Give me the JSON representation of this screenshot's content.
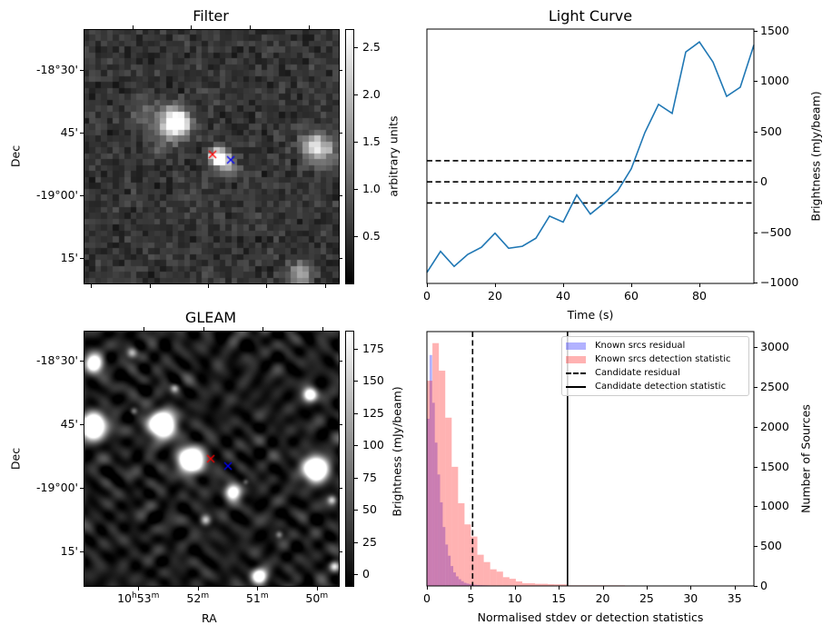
{
  "panels": {
    "filter": {
      "title": "Filter",
      "ylabel": "Dec",
      "dec_range_deg": [
        -18.337,
        -19.351
      ],
      "dec_ticks": [
        {
          "value": -18.5,
          "label": "-18°30'"
        },
        {
          "value": -18.75,
          "label": "45'"
        },
        {
          "value": -19.0,
          "label": "-19°00'"
        },
        {
          "value": -19.25,
          "label": "15'"
        }
      ],
      "colorbar": {
        "label": "arbitrary units",
        "range": [
          0,
          2.69
        ],
        "ticks": [
          {
            "value": 2.5,
            "label": "2.5"
          },
          {
            "value": 2.0,
            "label": "2.0"
          },
          {
            "value": 1.5,
            "label": "1.5"
          },
          {
            "value": 1.0,
            "label": "1.0"
          },
          {
            "value": 0.5,
            "label": "0.5"
          }
        ]
      },
      "marker_colors": {
        "candidate": "#ff0000",
        "reference": "#0000ff"
      }
    },
    "gleam": {
      "title": "GLEAM",
      "xlabel": "RA",
      "ylabel": "Dec",
      "dec_range_deg": [
        -18.382,
        -19.386
      ],
      "ra_range_min": [
        53.92,
        49.63
      ],
      "dec_ticks": [
        {
          "value": -18.5,
          "label": "-18°30'"
        },
        {
          "value": -18.75,
          "label": "45'"
        },
        {
          "value": -19.0,
          "label": "-19°00'"
        },
        {
          "value": -19.25,
          "label": "15'"
        }
      ],
      "ra_ticks": [
        {
          "value": 53,
          "h": "10",
          "hs": "h",
          "m": "53",
          "ms": "m"
        },
        {
          "value": 52,
          "m": "52",
          "ms": "m"
        },
        {
          "value": 51,
          "m": "51",
          "ms": "m"
        },
        {
          "value": 50,
          "m": "50",
          "ms": "m"
        }
      ],
      "colorbar": {
        "label": "Brightness (mJy/beam)",
        "range": [
          -9,
          189
        ],
        "ticks": [
          {
            "value": 175,
            "label": "175"
          },
          {
            "value": 150,
            "label": "150"
          },
          {
            "value": 125,
            "label": "125"
          },
          {
            "value": 100,
            "label": "100"
          },
          {
            "value": 75,
            "label": "75"
          },
          {
            "value": 50,
            "label": "50"
          },
          {
            "value": 25,
            "label": "25"
          },
          {
            "value": 0,
            "label": "0"
          }
        ]
      },
      "marker_colors": {
        "candidate": "#ff0000",
        "reference": "#0000ff"
      }
    }
  },
  "chart_data": [
    {
      "type": "line",
      "title": "Light Curve",
      "xlabel": "Time (s)",
      "ylabel": "Brightness (mJy/beam)",
      "xlim": [
        0,
        96
      ],
      "ylim": [
        -1009,
        1518
      ],
      "xticks": [
        0,
        20,
        40,
        60,
        80
      ],
      "yticks": [
        1500,
        1000,
        500,
        0,
        -500,
        -1000
      ],
      "ytick_labels": [
        "1500",
        "1000",
        "500",
        "0",
        "−500",
        "−1000"
      ],
      "yaxis_side": "right",
      "color": "#1f77b4",
      "x": [
        0,
        4,
        8,
        12,
        16,
        20,
        24,
        28,
        32,
        36,
        40,
        44,
        48,
        52,
        56,
        60,
        64,
        68,
        72,
        76,
        80,
        84,
        88,
        92,
        96
      ],
      "y": [
        -900,
        -690,
        -840,
        -720,
        -650,
        -510,
        -660,
        -640,
        -560,
        -340,
        -400,
        -130,
        -320,
        -210,
        -90,
        130,
        490,
        770,
        680,
        1290,
        1390,
        1190,
        850,
        940,
        1360
      ],
      "hlines": [
        {
          "y": 210,
          "style": "dashed"
        },
        {
          "y": 0,
          "style": "dashed"
        },
        {
          "y": -210,
          "style": "dashed"
        }
      ]
    },
    {
      "type": "histogram",
      "xlabel": "Normalised stdev or detection statistics",
      "ylabel": "Number of Sources",
      "xlim": [
        0,
        37.2
      ],
      "ylim": [
        0,
        3194
      ],
      "xticks": [
        0,
        5,
        10,
        15,
        20,
        25,
        30,
        35
      ],
      "yticks": [
        0,
        500,
        1000,
        1500,
        2000,
        2500,
        3000
      ],
      "yaxis_side": "right",
      "legend_position": "top-right",
      "series": [
        {
          "name": "Known srcs residual",
          "color": "#0000ff",
          "alpha": 0.3,
          "bin_start": 0,
          "bin_width": 0.3,
          "counts": [
            2100,
            2900,
            2300,
            1800,
            1400,
            1050,
            740,
            520,
            380,
            250,
            170,
            120,
            85,
            60,
            40,
            30,
            22,
            18,
            14,
            12,
            10,
            9,
            8,
            7,
            6,
            6,
            5,
            5,
            4,
            4,
            4,
            3,
            3,
            3,
            2,
            2,
            2,
            2,
            2,
            2,
            1,
            1
          ]
        },
        {
          "name": "Known srcs detection statistic",
          "color": "#ff0000",
          "alpha": 0.3,
          "bin_start": -0.1,
          "bin_width": 0.73,
          "counts": [
            2577,
            3049,
            2703,
            2113,
            1496,
            1039,
            773,
            620,
            392,
            300,
            209,
            180,
            110,
            90,
            57,
            34,
            34,
            27,
            27,
            22,
            20,
            20,
            8,
            8,
            8,
            8,
            8,
            8,
            8,
            8,
            8,
            0,
            6,
            0,
            6,
            0,
            0,
            6,
            0,
            0,
            6,
            0,
            0,
            0,
            0,
            0,
            0,
            0,
            6,
            0
          ]
        }
      ],
      "vlines": [
        {
          "name": "Candidate residual",
          "x": 5.2,
          "style": "dashed"
        },
        {
          "name": "Candidate detection statistic",
          "x": 16.0,
          "style": "solid"
        }
      ]
    }
  ]
}
